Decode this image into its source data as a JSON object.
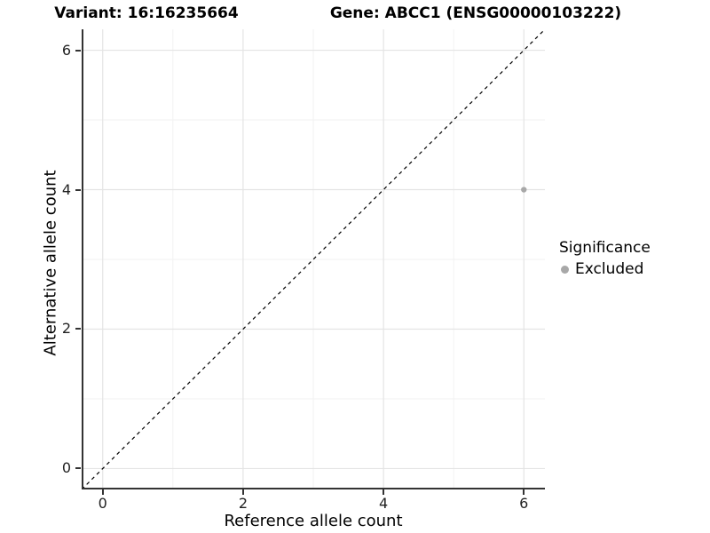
{
  "header": {
    "variant_title": "Variant: 16:16235664",
    "gene_title": "Gene: ABCC1 (ENSG00000103222)"
  },
  "chart_data": {
    "type": "scatter",
    "title_left": "Variant: 16:16235664",
    "title_right": "Gene: ABCC1 (ENSG00000103222)",
    "xlabel": "Reference allele count",
    "ylabel": "Alternative allele count",
    "xlim": [
      -0.3,
      6.3
    ],
    "ylim": [
      -0.3,
      6.3
    ],
    "x_major_ticks": [
      0,
      2,
      4,
      6
    ],
    "x_minor_ticks": [
      1,
      3,
      5
    ],
    "y_major_ticks": [
      0,
      2,
      4,
      6
    ],
    "y_minor_ticks": [
      1,
      3,
      5
    ],
    "grid": "major-and-minor",
    "reference_line": {
      "type": "identity",
      "style": "dashed",
      "color": "#000000"
    },
    "series": [
      {
        "name": "Excluded",
        "color": "#a8a8a8",
        "marker": "circle",
        "points": [
          {
            "x": 6,
            "y": 4
          }
        ]
      }
    ],
    "legend": {
      "title": "Significance",
      "position": "right",
      "entries": [
        {
          "label": "Excluded",
          "color": "#a8a8a8",
          "marker": "circle"
        }
      ]
    }
  },
  "colors": {
    "background": "#ffffff",
    "major_grid": "#e4e4e4",
    "minor_grid": "#f2f2f2",
    "axis_line": "#333333",
    "tick_label": "#222222",
    "point": "#a8a8a8"
  }
}
